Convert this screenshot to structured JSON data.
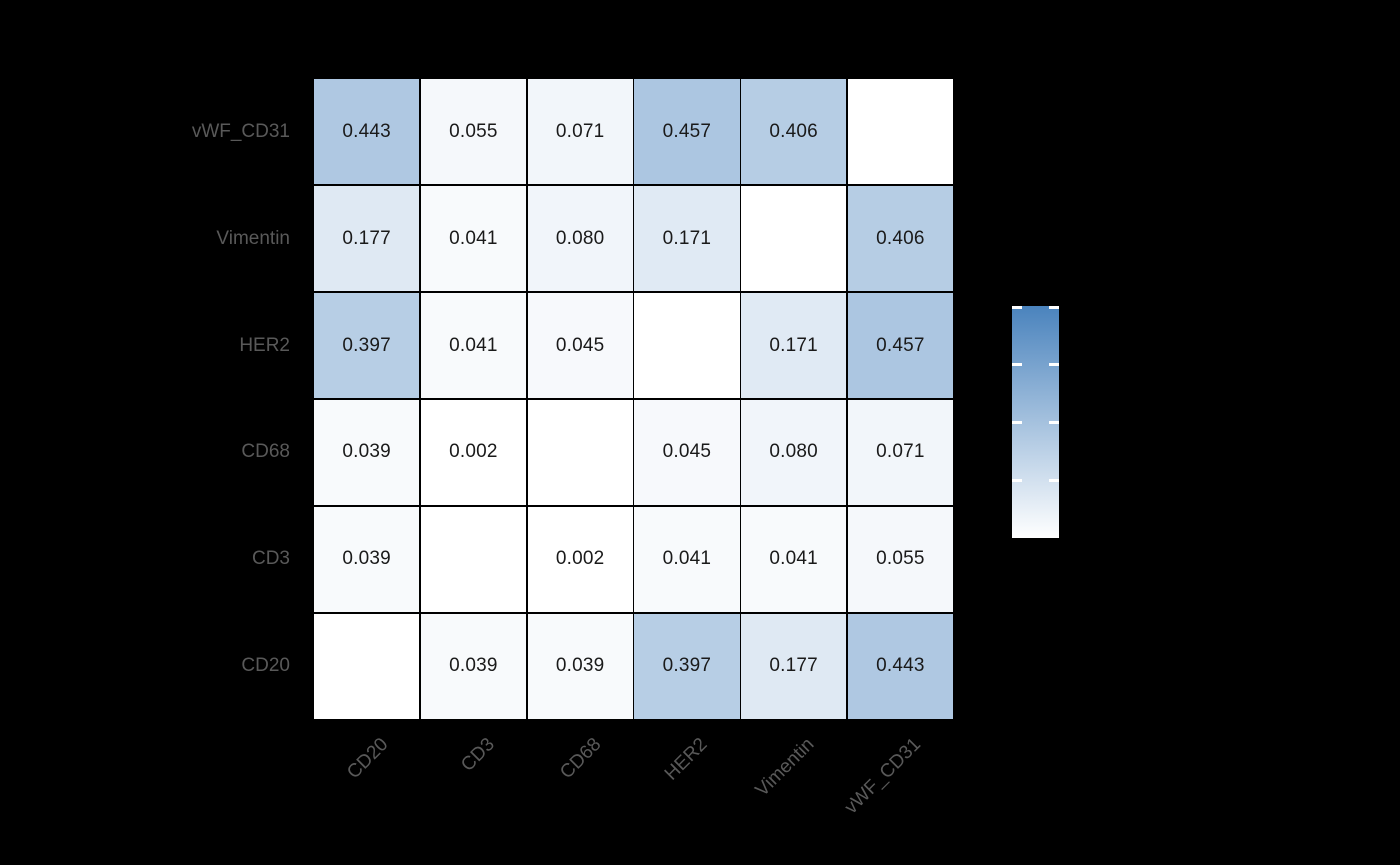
{
  "figure": {
    "background_color": "#000000",
    "axis_label_color": "#595959",
    "cell_value_color": "#1a1a1a",
    "grid_line_color": "#000000"
  },
  "chart_data": {
    "type": "heatmap",
    "title": "",
    "x_tick_labels": [
      "CD20",
      "CD3",
      "CD68",
      "HER2",
      "Vimentin",
      "vWF_CD31"
    ],
    "y_tick_labels_top_to_bottom": [
      "vWF_CD31",
      "Vimentin",
      "HER2",
      "CD68",
      "CD3",
      "CD20"
    ],
    "cell_values": [
      [
        "0.443",
        "0.055",
        "0.071",
        "0.457",
        "0.406",
        null
      ],
      [
        "0.177",
        "0.041",
        "0.080",
        "0.171",
        null,
        "0.406"
      ],
      [
        "0.397",
        "0.041",
        "0.045",
        null,
        "0.171",
        "0.457"
      ],
      [
        "0.039",
        "0.002",
        null,
        "0.045",
        "0.080",
        "0.071"
      ],
      [
        "0.039",
        null,
        "0.002",
        "0.041",
        "0.041",
        "0.055"
      ],
      [
        null,
        "0.039",
        "0.039",
        "0.397",
        "0.177",
        "0.443"
      ]
    ],
    "diagonal_masked": true,
    "value_range": [
      0,
      1
    ],
    "colormap": {
      "low": "#ffffff",
      "high": "#4a83bd"
    },
    "legend_position": "right",
    "grid": false,
    "colorbar": {
      "orientation": "vertical",
      "gradient_top": "#4a83bd",
      "gradient_bottom": "#ffffff",
      "tick_fractions_from_top": [
        0,
        0.25,
        0.5,
        0.75
      ],
      "tick_color": "#ffffff"
    }
  }
}
